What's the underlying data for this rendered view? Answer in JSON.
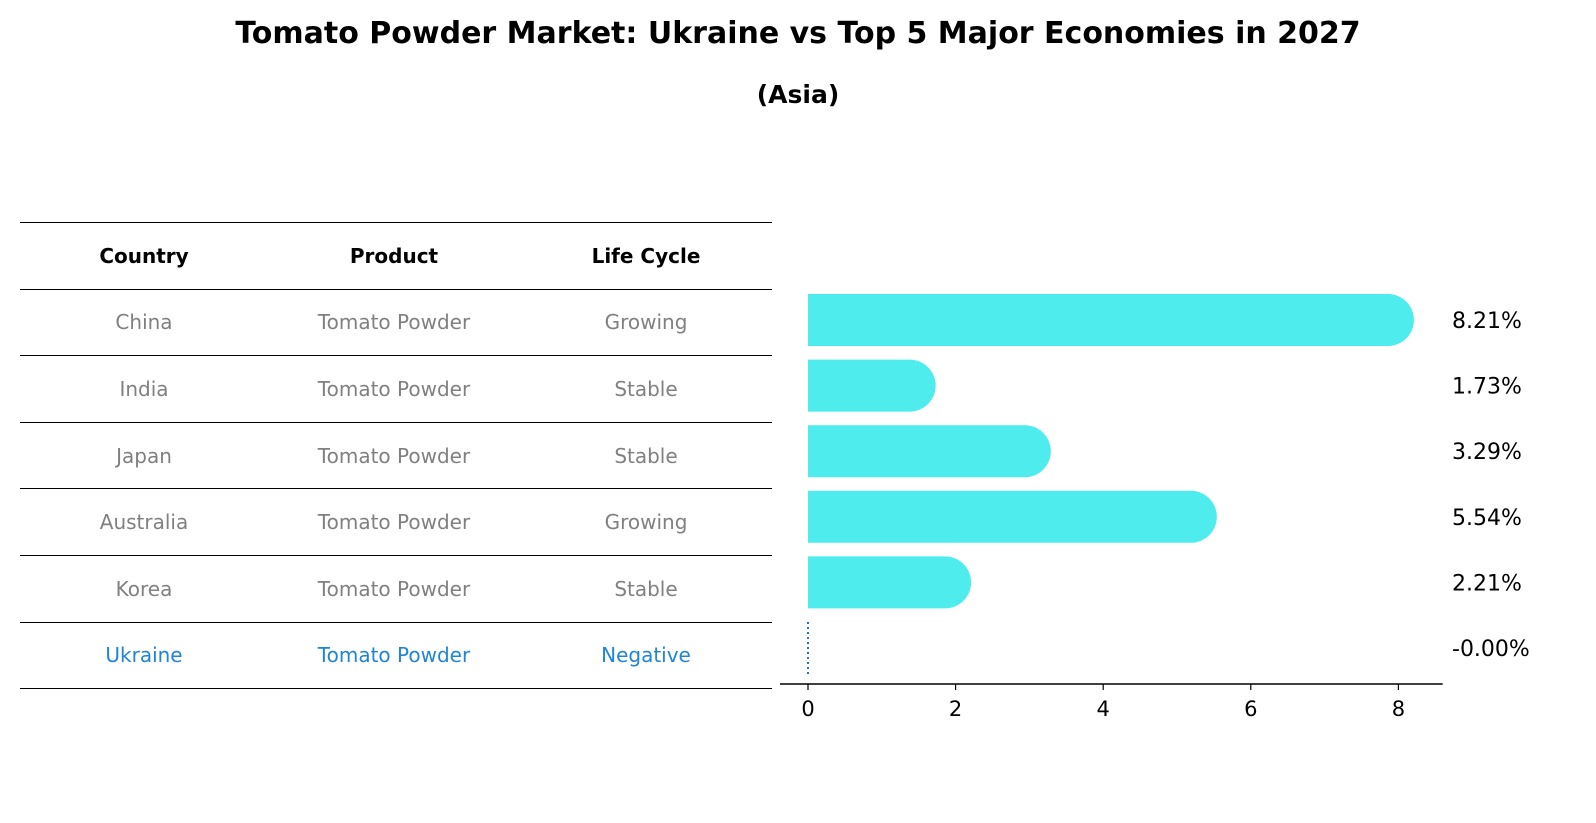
{
  "title": "Tomato Powder Market: Ukraine vs Top 5 Major Economies in 2027",
  "subtitle": "(Asia)",
  "table": {
    "headers": [
      "Country",
      "Product",
      "Life Cycle"
    ],
    "rows": [
      [
        "China",
        "Tomato Powder",
        "Growing"
      ],
      [
        "India",
        "Tomato Powder",
        "Stable"
      ],
      [
        "Japan",
        "Tomato Powder",
        "Stable"
      ],
      [
        "Australia",
        "Tomato Powder",
        "Growing"
      ],
      [
        "Korea",
        "Tomato Powder",
        "Stable"
      ],
      [
        "Ukraine",
        "Tomato Powder",
        "Negative"
      ]
    ],
    "highlight_row": "Ukraine"
  },
  "colors": {
    "bar": "#4eecec",
    "highlight_text": "#1f85d6",
    "dim_text": "#808080",
    "zero_line": "#1f77b4"
  },
  "chart_data": {
    "type": "bar",
    "orientation": "horizontal",
    "categories": [
      "China",
      "India",
      "Japan",
      "Australia",
      "Korea",
      "Ukraine"
    ],
    "values": [
      8.21,
      1.73,
      3.29,
      5.54,
      2.21,
      -0.0
    ],
    "value_labels": [
      "8.21%",
      "1.73%",
      "3.29%",
      "5.54%",
      "2.21%",
      "-0.00%"
    ],
    "xticks": [
      "0",
      "2",
      "4",
      "6",
      "8"
    ],
    "xlim": [
      -0.4,
      8.6
    ],
    "xlabel": "",
    "ylabel": "",
    "grid": false
  }
}
